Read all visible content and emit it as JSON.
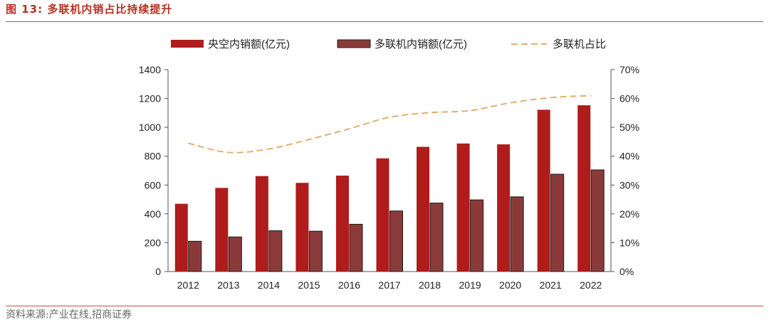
{
  "figure": {
    "title": "图 13:  多联机内销占比持续提升",
    "source": "资料来源:产业在线,招商证券"
  },
  "colors": {
    "central_ac": "#b01c1c",
    "vrf": "#8b3a3a",
    "ratio_line": "#e0b070",
    "accent": "#c0504d"
  },
  "chart_data": {
    "type": "bar",
    "categories": [
      "2012",
      "2013",
      "2014",
      "2015",
      "2016",
      "2017",
      "2018",
      "2019",
      "2020",
      "2021",
      "2022"
    ],
    "series": [
      {
        "name": "央空内销额(亿元)",
        "type": "bar",
        "axis": "left",
        "values": [
          470,
          580,
          662,
          615,
          665,
          785,
          865,
          888,
          882,
          1122,
          1153
        ]
      },
      {
        "name": "多联机内销额(亿元)",
        "type": "bar",
        "axis": "left",
        "values": [
          210,
          240,
          283,
          280,
          328,
          420,
          475,
          497,
          518,
          675,
          705
        ]
      },
      {
        "name": "多联机占比",
        "type": "line",
        "axis": "right",
        "values": [
          0.445,
          0.413,
          0.425,
          0.458,
          0.495,
          0.535,
          0.551,
          0.558,
          0.585,
          0.603,
          0.61
        ]
      }
    ],
    "y_left": {
      "min": 0,
      "max": 1400,
      "ticks": [
        "0",
        "200",
        "400",
        "600",
        "800",
        "1000",
        "1200",
        "1400"
      ]
    },
    "y_right": {
      "min": 0,
      "max": 0.7,
      "ticks": [
        "0%",
        "10%",
        "20%",
        "30%",
        "40%",
        "50%",
        "60%",
        "70%"
      ]
    },
    "legend_position": "top-center",
    "grid": false
  }
}
